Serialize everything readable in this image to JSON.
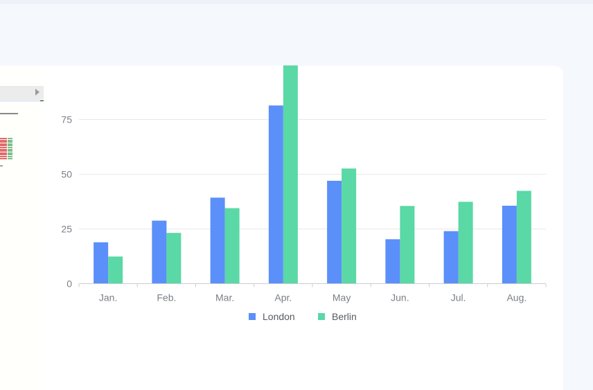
{
  "chart_data": {
    "type": "bar",
    "categories": [
      "Jan.",
      "Feb.",
      "Mar.",
      "Apr.",
      "May",
      "Jun.",
      "Jul.",
      "Aug."
    ],
    "series": [
      {
        "name": "London",
        "values": [
          18.9,
          28.8,
          39.3,
          81.4,
          47,
          20.3,
          24,
          35.6
        ]
      },
      {
        "name": "Berlin",
        "values": [
          12.4,
          23.2,
          34.5,
          99.7,
          52.6,
          35.5,
          37.4,
          42.4
        ]
      }
    ],
    "yticks": [
      "0",
      "25",
      "50",
      "75"
    ],
    "ylim": [
      0,
      100
    ],
    "grid": true,
    "legend_position": "bottom-center",
    "colors": {
      "London": "#5b8ff9",
      "Berlin": "#5ad8a6"
    }
  }
}
